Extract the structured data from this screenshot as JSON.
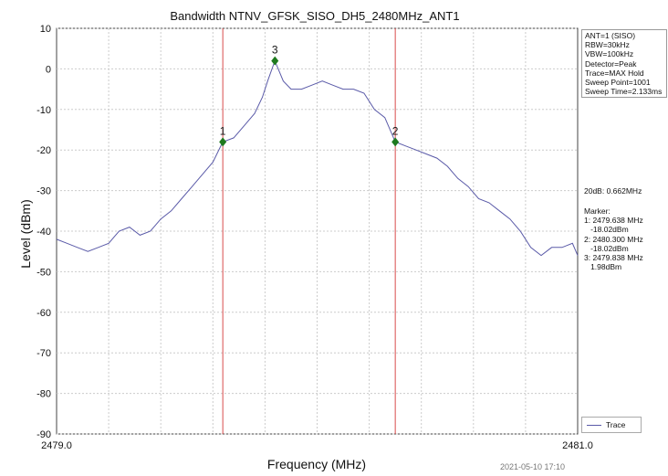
{
  "chart_data": {
    "type": "line",
    "title": "Bandwidth NTNV_GFSK_SISO_DH5_2480MHz_ANT1",
    "xlabel": "Frequency (MHz)",
    "ylabel": "Level (dBm)",
    "xlim": [
      2479.0,
      2481.0
    ],
    "ylim": [
      -90,
      10
    ],
    "x_tick_labels": [
      "2479.0",
      "2481.0"
    ],
    "y_ticks": [
      10,
      0,
      -10,
      -20,
      -30,
      -40,
      -50,
      -60,
      -70,
      -80,
      -90
    ],
    "grid": true,
    "legend_position": "bottom-right",
    "series": [
      {
        "name": "Trace",
        "color": "#5a5aa8",
        "x": [
          2479.0,
          2479.04,
          2479.08,
          2479.12,
          2479.16,
          2479.2,
          2479.24,
          2479.28,
          2479.32,
          2479.36,
          2479.4,
          2479.44,
          2479.48,
          2479.52,
          2479.56,
          2479.6,
          2479.638,
          2479.68,
          2479.72,
          2479.76,
          2479.79,
          2479.81,
          2479.838,
          2479.87,
          2479.9,
          2479.94,
          2479.98,
          2480.02,
          2480.06,
          2480.1,
          2480.14,
          2480.18,
          2480.22,
          2480.26,
          2480.3,
          2480.34,
          2480.38,
          2480.42,
          2480.46,
          2480.5,
          2480.54,
          2480.58,
          2480.62,
          2480.66,
          2480.7,
          2480.74,
          2480.78,
          2480.82,
          2480.86,
          2480.9,
          2480.94,
          2480.98,
          2481.0
        ],
        "y": [
          -42,
          -43,
          -44,
          -45,
          -44,
          -43,
          -40,
          -39,
          -41,
          -40,
          -37,
          -35,
          -32,
          -29,
          -26,
          -23,
          -18.02,
          -17,
          -14,
          -11,
          -7,
          -3,
          1.98,
          -3,
          -5,
          -5,
          -4,
          -3,
          -4,
          -5,
          -5,
          -6,
          -10,
          -12,
          -18.02,
          -19,
          -20,
          -21,
          -22,
          -24,
          -27,
          -29,
          -32,
          -33,
          -35,
          -37,
          -40,
          -44,
          -46,
          -44,
          -44,
          -43,
          -46
        ]
      }
    ],
    "markers": [
      {
        "label": "1",
        "x": 2479.638,
        "y": -18.02
      },
      {
        "label": "2",
        "x": 2480.3,
        "y": -18.02
      },
      {
        "label": "3",
        "x": 2479.838,
        "y": 1.98
      }
    ],
    "vertical_lines_x": [
      2479.638,
      2480.3
    ]
  },
  "settings_lines": [
    "ANT=1 (SISO)",
    "RBW=30kHz",
    "VBW=100kHz",
    "Detector=Peak",
    "Trace=MAX Hold",
    "Sweep Point=1001",
    "Sweep Time=2.133ms"
  ],
  "bandwidth_text": "20dB: 0.662MHz",
  "marker_text_lines": [
    "Marker:",
    "1: 2479.638 MHz",
    "   -18.02dBm",
    "2: 2480.300 MHz",
    "   -18.02dBm",
    "3: 2479.838 MHz",
    "   1.98dBm"
  ],
  "legend_label": "Trace",
  "timestamp": "2021-05-10 17:10",
  "colors": {
    "trace": "#5a5aa8",
    "marker_line": "#d84a4a",
    "marker_point": "#1e7a1e",
    "grid": "#cccccc"
  }
}
